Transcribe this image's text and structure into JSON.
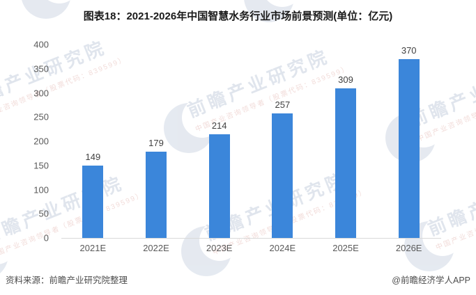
{
  "title": "图表18：2021-2026年中国智慧水务行业市场前景预测(单位：亿元)",
  "chart_data": {
    "type": "bar",
    "categories": [
      "2021E",
      "2022E",
      "2023E",
      "2024E",
      "2025E",
      "2026E"
    ],
    "values": [
      149,
      179,
      214,
      257,
      309,
      370
    ],
    "title": "图表18：2021-2026年中国智慧水务行业市场前景预测(单位：亿元)",
    "xlabel": "",
    "ylabel": "",
    "unit": "亿元",
    "ylim": [
      0,
      400
    ],
    "ytick_interval": 50,
    "yticks": [
      400,
      350,
      300,
      250,
      200,
      150,
      100,
      50,
      0
    ],
    "grid": false,
    "legend": null,
    "data_labels_shown": true
  },
  "colors": {
    "bar": "#3B86DA",
    "axis_line": "#D9D9D9",
    "tick_text": "#595959",
    "value_text": "#404040",
    "title_text": "#1A1A1A",
    "footer_text": "#4D4D4D",
    "watermark_text": "#B7C3D6"
  },
  "watermark": {
    "brand": "前瞻产业研究院",
    "subtext": "中国产业咨询领导者（股票代码：839599）",
    "logo": "qianzhan-eye-logo"
  },
  "footer": {
    "source": "资料来源：前瞻产业研究院整理",
    "credit": "@前瞻经济学人APP"
  }
}
